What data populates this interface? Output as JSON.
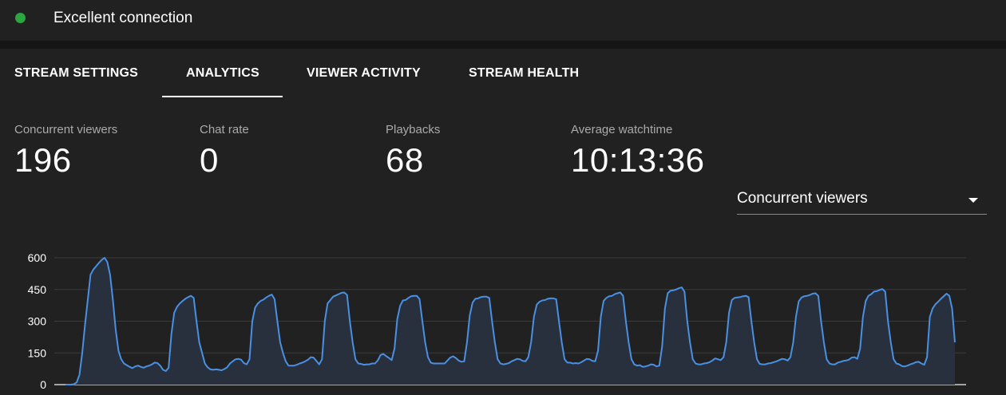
{
  "status": {
    "text": "Excellent connection",
    "color": "#2ba640"
  },
  "tabs": [
    {
      "label": "STREAM SETTINGS"
    },
    {
      "label": "ANALYTICS",
      "active": true
    },
    {
      "label": "VIEWER ACTIVITY"
    },
    {
      "label": "STREAM HEALTH"
    }
  ],
  "metrics": [
    {
      "label": "Concurrent viewers",
      "value": "196"
    },
    {
      "label": "Chat rate",
      "value": "0"
    },
    {
      "label": "Playbacks",
      "value": "68"
    },
    {
      "label": "Average watchtime",
      "value": "10:13:36"
    }
  ],
  "metric_select": {
    "selected": "Concurrent viewers"
  },
  "chart_data": {
    "type": "area",
    "ylim": [
      0,
      600
    ],
    "yticks": [
      "0",
      "150",
      "300",
      "450",
      "600"
    ],
    "grid": true,
    "line_color": "#4a90e2",
    "values": [
      0,
      0,
      0,
      2,
      10,
      46,
      150,
      280,
      400,
      520,
      544,
      560,
      576,
      590,
      600,
      580,
      520,
      400,
      260,
      160,
      120,
      100,
      92,
      84,
      78,
      86,
      90,
      84,
      80,
      86,
      90,
      96,
      104,
      102,
      90,
      70,
      64,
      80,
      240,
      340,
      368,
      384,
      396,
      406,
      414,
      420,
      410,
      300,
      200,
      150,
      100,
      82,
      72,
      70,
      72,
      70,
      68,
      74,
      82,
      100,
      110,
      120,
      122,
      118,
      102,
      96,
      120,
      300,
      364,
      384,
      396,
      402,
      412,
      420,
      426,
      404,
      300,
      200,
      150,
      110,
      90,
      90,
      90,
      94,
      100,
      104,
      110,
      118,
      130,
      128,
      112,
      96,
      120,
      300,
      384,
      400,
      416,
      422,
      428,
      434,
      436,
      424,
      300,
      200,
      120,
      100,
      98,
      94,
      96,
      96,
      100,
      100,
      114,
      140,
      145,
      135,
      126,
      116,
      170,
      310,
      372,
      398,
      400,
      410,
      418,
      420,
      420,
      404,
      300,
      200,
      130,
      104,
      100,
      100,
      100,
      100,
      100,
      114,
      128,
      134,
      126,
      114,
      108,
      110,
      200,
      328,
      388,
      406,
      408,
      414,
      416,
      416,
      410,
      300,
      200,
      120,
      100,
      96,
      98,
      102,
      110,
      116,
      122,
      120,
      112,
      110,
      130,
      200,
      320,
      378,
      392,
      398,
      400,
      406,
      408,
      408,
      404,
      300,
      200,
      120,
      104,
      104,
      100,
      102,
      100,
      106,
      114,
      122,
      120,
      112,
      110,
      160,
      320,
      396,
      410,
      418,
      420,
      428,
      432,
      436,
      420,
      300,
      200,
      120,
      96,
      90,
      92,
      84,
      86,
      90,
      96,
      94,
      86,
      90,
      180,
      360,
      432,
      444,
      446,
      450,
      456,
      460,
      440,
      300,
      200,
      120,
      100,
      96,
      96,
      100,
      102,
      106,
      114,
      124,
      120,
      116,
      130,
      200,
      340,
      400,
      410,
      412,
      414,
      418,
      420,
      414,
      300,
      200,
      120,
      98,
      96,
      96,
      100,
      102,
      106,
      110,
      116,
      122,
      120,
      114,
      130,
      200,
      320,
      394,
      412,
      418,
      420,
      424,
      430,
      432,
      420,
      300,
      200,
      120,
      100,
      96,
      96,
      104,
      108,
      112,
      114,
      118,
      128,
      130,
      122,
      170,
      320,
      396,
      420,
      428,
      440,
      442,
      448,
      452,
      440,
      300,
      200,
      120,
      100,
      96,
      88,
      86,
      90,
      96,
      100,
      106,
      108,
      100,
      94,
      130,
      320,
      360,
      380,
      392,
      406,
      418,
      430,
      420,
      360,
      200
    ]
  }
}
